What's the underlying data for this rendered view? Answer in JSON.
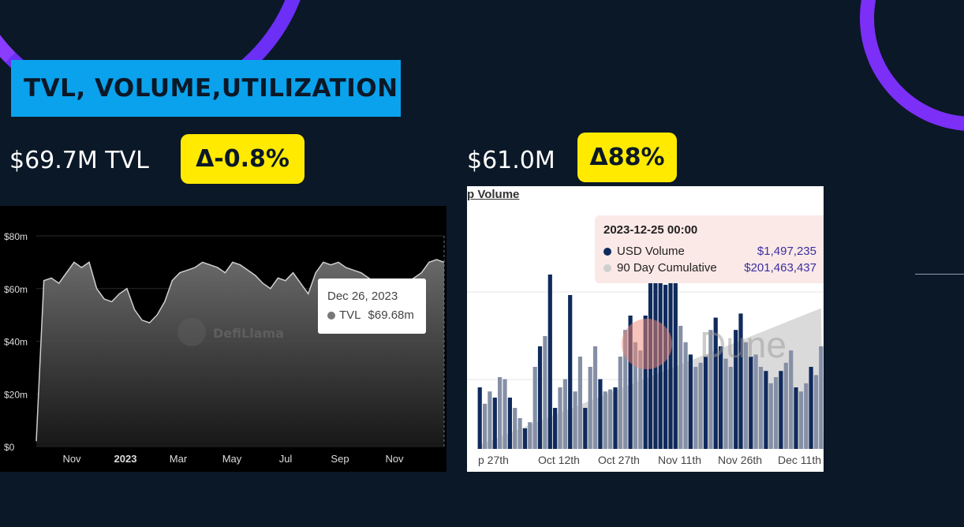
{
  "header": {
    "title": "TVL, VOLUME,UTILIZATION"
  },
  "tvl": {
    "value_label": "$69.7M TVL",
    "delta_label": "Δ-0.8%"
  },
  "volume": {
    "value_label": "$61.0M",
    "delta_label": "Δ88%"
  },
  "chart_data": [
    {
      "type": "area",
      "source_watermark": "DefiLlama",
      "title": "",
      "x_ticks": [
        "Nov",
        "2023",
        "Mar",
        "May",
        "Jul",
        "Sep",
        "Nov"
      ],
      "y_ticks": [
        "$0",
        "$20m",
        "$40m",
        "$60m",
        "$80m"
      ],
      "ylim": [
        0,
        80
      ],
      "series": [
        {
          "name": "TVL",
          "unit": "$m",
          "values": [
            2,
            63,
            64,
            62,
            66,
            70,
            68,
            70,
            60,
            56,
            55,
            58,
            60,
            52,
            48,
            47,
            50,
            55,
            63,
            66,
            67,
            68,
            70,
            69,
            68,
            66,
            70,
            69,
            67,
            65,
            62,
            60,
            64,
            63,
            66,
            62,
            58,
            66,
            70,
            69,
            70,
            68,
            67,
            66,
            64,
            62,
            61,
            60,
            58,
            62,
            64,
            66,
            70,
            71,
            70
          ]
        }
      ],
      "tooltip": {
        "date": "Dec 26, 2023",
        "series_label": "TVL",
        "value": "$69.68m"
      }
    },
    {
      "type": "bar",
      "title": "p Volume",
      "source_watermark": "Dune",
      "x_ticks": [
        "p 27th",
        "Oct 12th",
        "Oct 27th",
        "Nov 11th",
        "Nov 26th",
        "Dec 11th"
      ],
      "series": [
        {
          "name": "USD Volume",
          "values": [
            30,
            22,
            28,
            25,
            35,
            34,
            25,
            20,
            15,
            10,
            13,
            40,
            50,
            55,
            85,
            20,
            30,
            34,
            75,
            28,
            45,
            20,
            40,
            50,
            34,
            28,
            29,
            30,
            45,
            58,
            65,
            52,
            48,
            65,
            95,
            100,
            102,
            80,
            102,
            100,
            60,
            52,
            46,
            40,
            42,
            45,
            58,
            64,
            50,
            44,
            40,
            58,
            66,
            52,
            45,
            46,
            40,
            38,
            32,
            35,
            38,
            42,
            48,
            30,
            28,
            32,
            40,
            36,
            50
          ]
        },
        {
          "name": "90 Day Cumulative",
          "values": [
            4,
            6,
            8,
            10,
            12,
            14,
            16,
            18,
            20,
            22,
            24,
            26,
            28,
            30,
            32,
            34,
            36,
            38,
            40,
            42,
            44,
            46,
            48,
            50,
            52,
            54,
            56,
            58,
            60,
            62,
            64,
            66,
            68,
            70,
            72,
            74,
            76,
            78,
            80,
            82,
            84,
            86,
            88,
            90,
            92,
            94,
            96,
            98,
            100,
            102,
            104,
            106,
            108,
            110,
            112,
            114,
            116,
            118,
            120,
            122,
            124,
            126,
            128,
            130,
            132,
            134,
            136,
            138,
            140
          ]
        }
      ],
      "tooltip": {
        "date": "2023-12-25 00:00",
        "rows": [
          {
            "label": "USD Volume",
            "value": "$1,497,235"
          },
          {
            "label": "90 Day Cumulative",
            "value": "$201,463,437"
          }
        ]
      }
    }
  ]
}
